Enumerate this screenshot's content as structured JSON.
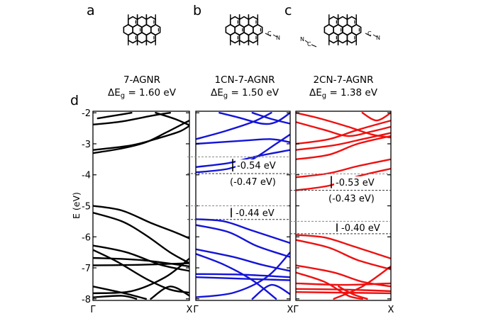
{
  "panel_letters": [
    "a",
    "b",
    "c",
    "d"
  ],
  "structures": [
    {
      "name": "7-AGNR",
      "gap_label": "ΔE",
      "gap_sub": "g",
      "gap_value": " = 1.60 eV",
      "substituents": []
    },
    {
      "name": "1CN-7-AGNR",
      "gap_label": "ΔE",
      "gap_sub": "g",
      "gap_value": " = 1.50 eV",
      "substituents": [
        "C≡N right"
      ]
    },
    {
      "name": "2CN-7-AGNR",
      "gap_label": "ΔE",
      "gap_sub": "g",
      "gap_value": " = 1.38 eV",
      "substituents": [
        "C≡N left",
        "C≡N right"
      ]
    }
  ],
  "atom_labels": {
    "carbon": "C",
    "nitrogen": "N"
  },
  "colors": {
    "pristine": "#000000",
    "cn1": "#1414d8",
    "cn2": "#ee1111",
    "reference": "#888888"
  },
  "chart_data": {
    "type": "line",
    "ylabel": "E (eV)",
    "ylim": [
      -8.05,
      -1.95
    ],
    "yticks": [
      -2,
      -3,
      -4,
      -5,
      -6,
      -7,
      -8
    ],
    "ytick_labels": [
      "-2",
      "-3",
      "-4",
      "-5",
      "-6",
      "-7",
      "-8"
    ],
    "xtick_labels": [
      "Γ",
      "X"
    ],
    "panels": [
      {
        "name": "7-AGNR",
        "color": "#000000",
        "bands": [
          [
            [
              0,
              -2.38
            ],
            [
              0.3,
              -2.28
            ],
            [
              0.6,
              -2.1
            ],
            [
              0.8,
              -2.0
            ]
          ],
          [
            [
              0,
              -3.3
            ],
            [
              0.3,
              -3.15
            ],
            [
              0.55,
              -2.95
            ],
            [
              0.75,
              -2.65
            ],
            [
              1,
              -2.25
            ]
          ],
          [
            [
              0,
              -3.2
            ],
            [
              0.4,
              -3.05
            ],
            [
              0.7,
              -2.8
            ],
            [
              0.9,
              -2.6
            ],
            [
              1,
              -2.42
            ]
          ],
          [
            [
              0.05,
              -2.18
            ],
            [
              0.3,
              -2.05
            ],
            [
              0.4,
              -2.0
            ]
          ],
          [
            [
              0.65,
              -2.0
            ],
            [
              0.85,
              -2.2
            ],
            [
              1,
              -2.4
            ]
          ],
          [
            [
              0,
              -5.0
            ],
            [
              0.3,
              -5.15
            ],
            [
              0.6,
              -5.55
            ],
            [
              0.85,
              -5.85
            ],
            [
              1,
              -6.05
            ]
          ],
          [
            [
              0,
              -5.22
            ],
            [
              0.3,
              -5.5
            ],
            [
              0.55,
              -5.95
            ],
            [
              0.8,
              -6.5
            ],
            [
              1,
              -6.85
            ]
          ],
          [
            [
              0,
              -6.28
            ],
            [
              0.35,
              -6.5
            ],
            [
              0.7,
              -6.9
            ],
            [
              1,
              -7.1
            ]
          ],
          [
            [
              0,
              -6.42
            ],
            [
              0.25,
              -6.8
            ],
            [
              0.55,
              -7.35
            ],
            [
              0.8,
              -7.7
            ],
            [
              1,
              -7.8
            ]
          ],
          [
            [
              0,
              -6.68
            ],
            [
              0.5,
              -6.75
            ],
            [
              1,
              -6.95
            ]
          ],
          [
            [
              0,
              -6.92
            ],
            [
              0.5,
              -6.9
            ],
            [
              1,
              -6.85
            ]
          ],
          [
            [
              0,
              -7.6
            ],
            [
              0.3,
              -7.8
            ],
            [
              0.55,
              -8.0
            ]
          ],
          [
            [
              0,
              -7.82
            ],
            [
              0.4,
              -7.75
            ],
            [
              0.75,
              -7.3
            ],
            [
              1,
              -6.7
            ]
          ],
          [
            [
              0.6,
              -8.0
            ],
            [
              0.8,
              -7.6
            ],
            [
              1,
              -7.9
            ]
          ],
          [
            [
              0,
              -7.95
            ],
            [
              0.3,
              -7.9
            ],
            [
              0.45,
              -8.0
            ]
          ]
        ],
        "gap_annotations": []
      },
      {
        "name": "1CN-7-AGNR",
        "color": "#1414d8",
        "bands": [
          [
            [
              0.25,
              -2.0
            ],
            [
              0.45,
              -2.15
            ],
            [
              0.7,
              -2.35
            ],
            [
              0.85,
              -2.3
            ],
            [
              1,
              -2.0
            ]
          ],
          [
            [
              0.6,
              -2.0
            ],
            [
              0.8,
              -2.2
            ],
            [
              1,
              -2.35
            ]
          ],
          [
            [
              0,
              -2.85
            ],
            [
              0.3,
              -2.6
            ],
            [
              0.6,
              -2.3
            ],
            [
              0.8,
              -2.0
            ]
          ],
          [
            [
              0,
              -3.0
            ],
            [
              0.5,
              -2.9
            ],
            [
              0.8,
              -2.85
            ],
            [
              1,
              -2.95
            ]
          ],
          [
            [
              0,
              -3.75
            ],
            [
              0.35,
              -3.62
            ],
            [
              0.65,
              -3.4
            ],
            [
              1,
              -3.2
            ]
          ],
          [
            [
              0,
              -3.92
            ],
            [
              0.35,
              -3.8
            ],
            [
              0.6,
              -3.5
            ],
            [
              0.85,
              -3.0
            ],
            [
              1,
              -2.7
            ]
          ],
          [
            [
              0,
              -5.43
            ],
            [
              0.3,
              -5.5
            ],
            [
              0.6,
              -5.8
            ],
            [
              1,
              -6.2
            ]
          ],
          [
            [
              0,
              -5.62
            ],
            [
              0.35,
              -5.85
            ],
            [
              0.65,
              -6.3
            ],
            [
              1,
              -6.65
            ]
          ],
          [
            [
              0,
              -6.4
            ],
            [
              0.4,
              -6.65
            ],
            [
              0.7,
              -6.9
            ],
            [
              1,
              -7.1
            ]
          ],
          [
            [
              0,
              -6.55
            ],
            [
              0.3,
              -6.9
            ],
            [
              0.6,
              -7.4
            ],
            [
              0.85,
              -8.0
            ]
          ],
          [
            [
              0,
              -7.2
            ],
            [
              0.5,
              -7.22
            ],
            [
              1,
              -7.3
            ]
          ],
          [
            [
              0,
              -7.3
            ],
            [
              0.5,
              -7.35
            ],
            [
              1,
              -7.4
            ]
          ],
          [
            [
              0,
              -7.95
            ],
            [
              0.4,
              -7.8
            ],
            [
              0.75,
              -7.3
            ],
            [
              1,
              -6.5
            ]
          ],
          [
            [
              0.6,
              -8.0
            ],
            [
              0.8,
              -7.55
            ],
            [
              1,
              -7.85
            ]
          ]
        ],
        "gap_annotations": [
          {
            "label": "-0.54 eV",
            "ref": -3.42,
            "shifted": -3.96,
            "alt_label": "(-0.47 eV)"
          },
          {
            "label": "-0.44 eV",
            "ref": -5.0,
            "shifted": -5.44,
            "alt_label": ""
          }
        ]
      },
      {
        "name": "2CN-7-AGNR",
        "color": "#ee1111",
        "bands": [
          [
            [
              0,
              -2.0
            ],
            [
              0.25,
              -2.18
            ],
            [
              0.55,
              -2.45
            ],
            [
              0.8,
              -2.7
            ],
            [
              1,
              -2.8
            ]
          ],
          [
            [
              0,
              -2.3
            ],
            [
              0.3,
              -2.55
            ],
            [
              0.55,
              -2.75
            ],
            [
              0.8,
              -2.6
            ],
            [
              1,
              -2.45
            ]
          ],
          [
            [
              0.7,
              -2.0
            ],
            [
              0.85,
              -2.25
            ],
            [
              1,
              -2.0
            ]
          ],
          [
            [
              0,
              -3.0
            ],
            [
              0.35,
              -2.85
            ],
            [
              0.65,
              -2.55
            ],
            [
              1,
              -2.25
            ]
          ],
          [
            [
              0,
              -3.2
            ],
            [
              0.4,
              -3.05
            ],
            [
              0.7,
              -2.85
            ],
            [
              1,
              -2.65
            ]
          ],
          [
            [
              0,
              -3.5
            ],
            [
              0.35,
              -3.35
            ],
            [
              0.65,
              -3.0
            ],
            [
              1,
              -2.75
            ]
          ],
          [
            [
              0,
              -4.08
            ],
            [
              0.35,
              -3.95
            ],
            [
              0.65,
              -3.72
            ],
            [
              1,
              -3.5
            ]
          ],
          [
            [
              0,
              -4.5
            ],
            [
              0.35,
              -4.35
            ],
            [
              0.65,
              -4.05
            ],
            [
              1,
              -3.8
            ]
          ],
          [
            [
              0,
              -5.94
            ],
            [
              0.3,
              -6.02
            ],
            [
              0.6,
              -6.3
            ],
            [
              1,
              -6.7
            ]
          ],
          [
            [
              0,
              -6.1
            ],
            [
              0.35,
              -6.35
            ],
            [
              0.65,
              -6.75
            ],
            [
              1,
              -7.05
            ]
          ],
          [
            [
              0,
              -6.92
            ],
            [
              0.4,
              -7.15
            ],
            [
              0.7,
              -7.45
            ],
            [
              1,
              -7.6
            ]
          ],
          [
            [
              0,
              -7.15
            ],
            [
              0.3,
              -7.45
            ],
            [
              0.55,
              -7.9
            ],
            [
              0.7,
              -8.0
            ]
          ],
          [
            [
              0,
              -7.68
            ],
            [
              0.5,
              -7.7
            ],
            [
              1,
              -7.75
            ]
          ],
          [
            [
              0,
              -7.78
            ],
            [
              0.5,
              -7.8
            ],
            [
              1,
              -7.82
            ]
          ],
          [
            [
              0,
              -7.5
            ],
            [
              0.5,
              -7.55
            ],
            [
              1,
              -7.5
            ]
          ],
          [
            [
              0.4,
              -8.0
            ],
            [
              0.7,
              -7.6
            ],
            [
              1,
              -6.95
            ]
          ],
          [
            [
              0.45,
              -7.6
            ],
            [
              0.6,
              -7.85
            ],
            [
              0.75,
              -8.0
            ]
          ]
        ],
        "gap_annotations": [
          {
            "label": "-0.53 eV",
            "ref": -3.97,
            "shifted": -4.5,
            "alt_label": "(-0.43 eV)"
          },
          {
            "label": "-0.40 eV",
            "ref": -5.5,
            "shifted": -5.9,
            "alt_label": ""
          }
        ]
      }
    ]
  }
}
